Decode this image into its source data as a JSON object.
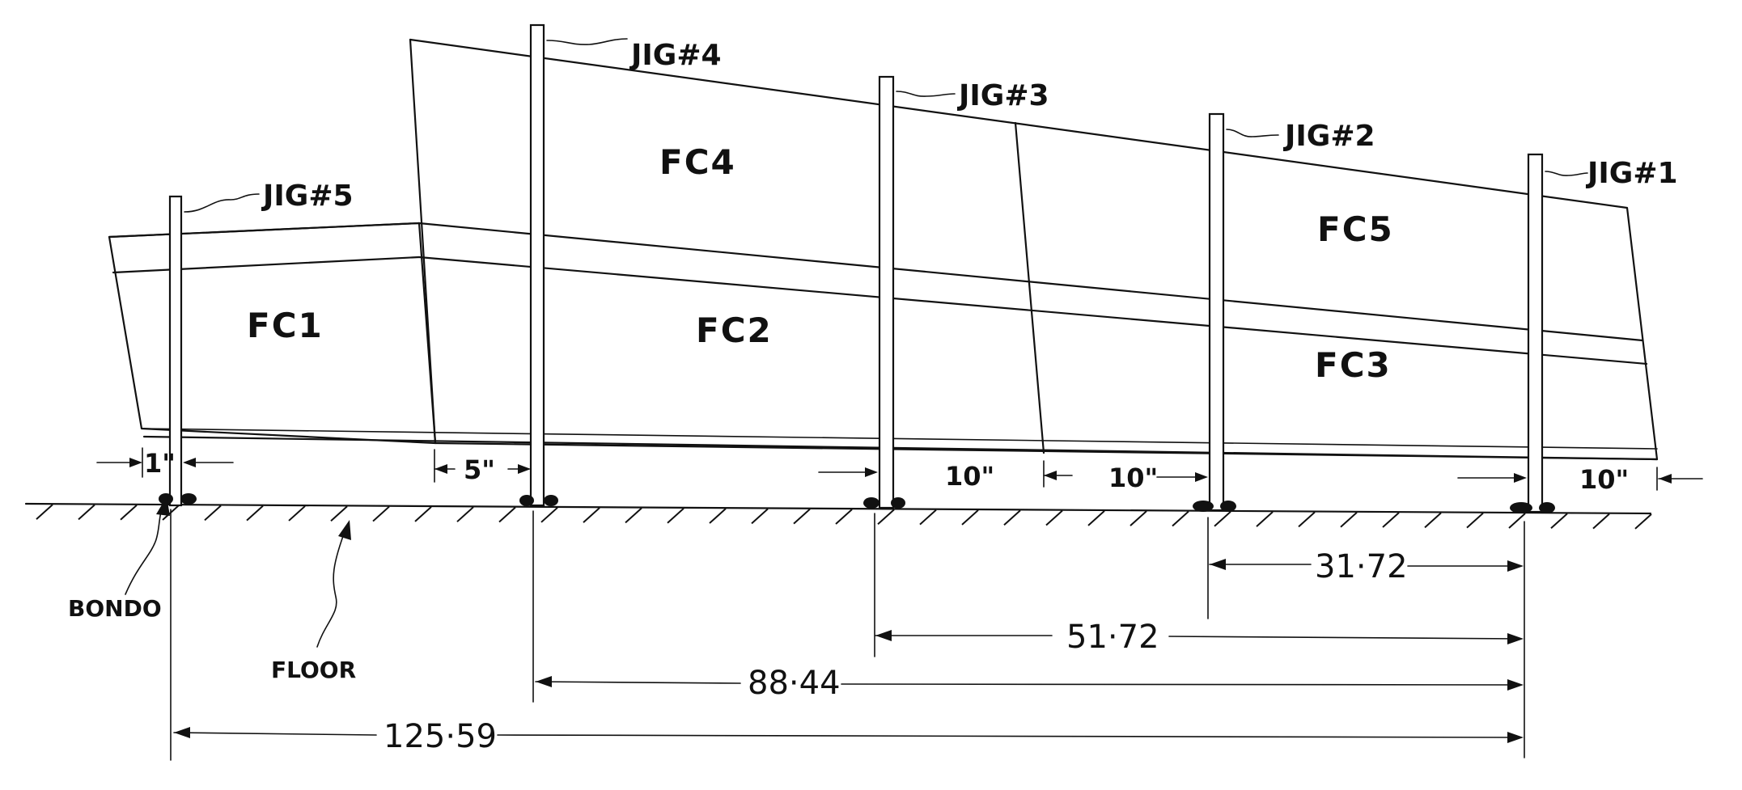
{
  "jigs": [
    {
      "label": "JIG#1"
    },
    {
      "label": "JIG#2"
    },
    {
      "label": "JIG#3"
    },
    {
      "label": "JIG#4"
    },
    {
      "label": "JIG#5"
    }
  ],
  "panels": {
    "fc1": "FC1",
    "fc2": "FC2",
    "fc3": "FC3",
    "fc4": "FC4",
    "fc5": "FC5"
  },
  "gaps": {
    "jig5": "1\"",
    "jig4": "5\"",
    "jig3": "10\"",
    "jig2": "10\"",
    "jig1": "10\""
  },
  "dimensions": {
    "jig2_to_jig1": "31·72",
    "jig3_to_jig1": "51·72",
    "jig4_to_jig1": "88·44",
    "jig5_to_jig1": "125·59"
  },
  "notes": {
    "bondo": "BONDO",
    "floor": "FLOOR"
  }
}
